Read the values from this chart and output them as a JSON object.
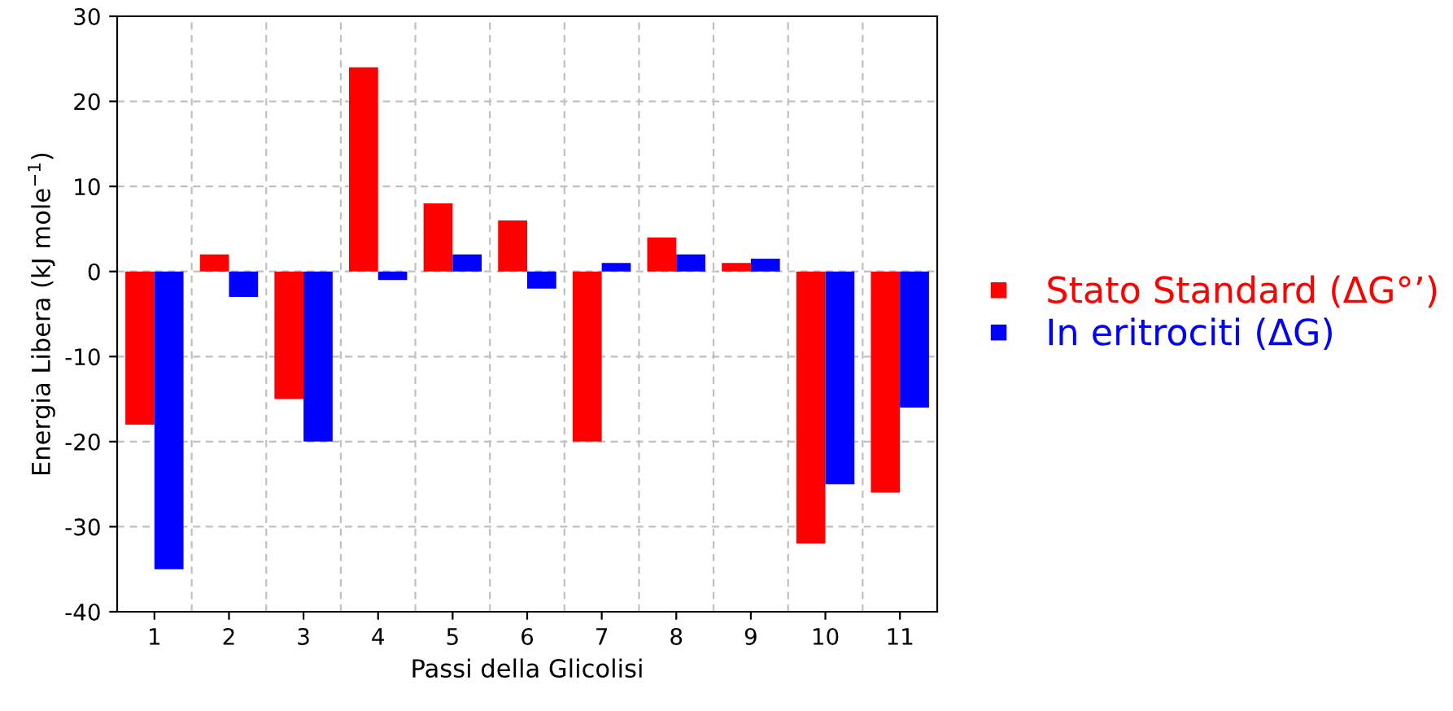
{
  "chart_data": {
    "type": "bar",
    "xlabel": "Passi della Glicolisi",
    "ylabel": "Energia Libera (kJ mole$^{−1}$)",
    "categories": [
      "1",
      "2",
      "3",
      "4",
      "5",
      "6",
      "7",
      "8",
      "9",
      "10",
      "11"
    ],
    "series": [
      {
        "name": "Stato Standard (ΔG°’)",
        "color": "#ff0000",
        "values": [
          -18,
          2,
          -15,
          24,
          8,
          6,
          -20,
          4,
          1,
          -32,
          -26
        ]
      },
      {
        "name": "In eritrociti (ΔG)",
        "color": "#0000ff",
        "values": [
          -35,
          -3,
          -20,
          -1,
          2,
          -2,
          1,
          2,
          1.5,
          -25,
          -16
        ]
      }
    ],
    "ylim": [
      -40,
      30
    ],
    "yticks": [
      -40,
      -30,
      -20,
      -10,
      0,
      10,
      20,
      30
    ],
    "grid": true,
    "legend": "right"
  }
}
